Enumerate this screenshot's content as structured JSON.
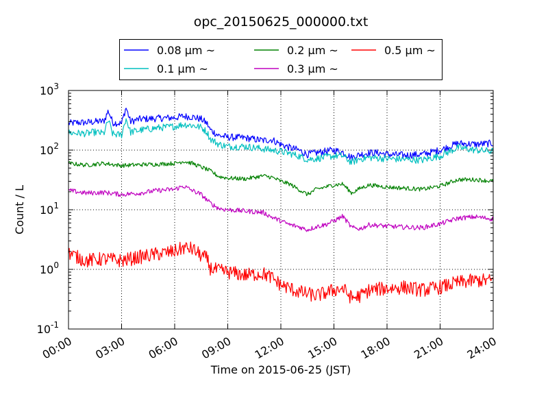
{
  "chart_data": {
    "type": "line",
    "title": "opc_20150625_000000.txt",
    "xlabel": "Time on 2015-06-25 (JST)",
    "ylabel": "Count / L",
    "x_unit": "time of day (JST)",
    "xlim": [
      "00:00",
      "24:00"
    ],
    "ylim": [
      0.1,
      1000
    ],
    "yscale": "log",
    "grid": true,
    "legend_position": "top-center",
    "x_ticks": [
      "00:00",
      "03:00",
      "06:00",
      "09:00",
      "12:00",
      "15:00",
      "18:00",
      "21:00",
      "24:00"
    ],
    "y_ticks": [
      {
        "value": 0.1,
        "base": "10",
        "exp": "-1"
      },
      {
        "value": 1,
        "base": "10",
        "exp": "0"
      },
      {
        "value": 10,
        "base": "10",
        "exp": "1"
      },
      {
        "value": 100,
        "base": "10",
        "exp": "2"
      },
      {
        "value": 1000,
        "base": "10",
        "exp": "3"
      }
    ],
    "series": [
      {
        "name": "0.08 μm ~",
        "color": "#0000ff",
        "noise": 0.06,
        "points": [
          [
            "00:00",
            280
          ],
          [
            "00:30",
            290
          ],
          [
            "01:00",
            290
          ],
          [
            "01:30",
            300
          ],
          [
            "02:00",
            305
          ],
          [
            "02:15",
            460
          ],
          [
            "02:30",
            290
          ],
          [
            "03:00",
            280
          ],
          [
            "03:15",
            520
          ],
          [
            "03:30",
            300
          ],
          [
            "04:00",
            330
          ],
          [
            "05:00",
            340
          ],
          [
            "06:00",
            350
          ],
          [
            "06:30",
            370
          ],
          [
            "07:00",
            360
          ],
          [
            "07:30",
            330
          ],
          [
            "07:50",
            280
          ],
          [
            "08:00",
            220
          ],
          [
            "08:30",
            175
          ],
          [
            "09:00",
            165
          ],
          [
            "10:00",
            160
          ],
          [
            "11:00",
            145
          ],
          [
            "11:30",
            150
          ],
          [
            "12:00",
            125
          ],
          [
            "12:30",
            110
          ],
          [
            "13:00",
            100
          ],
          [
            "13:30",
            85
          ],
          [
            "14:00",
            90
          ],
          [
            "14:30",
            95
          ],
          [
            "15:00",
            100
          ],
          [
            "15:30",
            92
          ],
          [
            "16:00",
            75
          ],
          [
            "16:30",
            85
          ],
          [
            "17:00",
            90
          ],
          [
            "17:30",
            90
          ],
          [
            "18:00",
            85
          ],
          [
            "19:00",
            82
          ],
          [
            "20:00",
            85
          ],
          [
            "21:00",
            100
          ],
          [
            "22:00",
            130
          ],
          [
            "23:00",
            125
          ],
          [
            "24:00",
            130
          ]
        ]
      },
      {
        "name": "0.1 μm ~",
        "color": "#00bfbf",
        "noise": 0.06,
        "points": [
          [
            "00:00",
            195
          ],
          [
            "01:00",
            190
          ],
          [
            "01:30",
            200
          ],
          [
            "02:00",
            190
          ],
          [
            "02:15",
            320
          ],
          [
            "02:30",
            185
          ],
          [
            "03:00",
            180
          ],
          [
            "03:15",
            340
          ],
          [
            "03:30",
            200
          ],
          [
            "04:00",
            215
          ],
          [
            "05:00",
            235
          ],
          [
            "06:00",
            250
          ],
          [
            "06:30",
            270
          ],
          [
            "07:00",
            260
          ],
          [
            "07:30",
            240
          ],
          [
            "07:50",
            200
          ],
          [
            "08:00",
            155
          ],
          [
            "08:30",
            125
          ],
          [
            "09:00",
            115
          ],
          [
            "10:00",
            115
          ],
          [
            "11:00",
            105
          ],
          [
            "12:00",
            95
          ],
          [
            "12:30",
            88
          ],
          [
            "13:00",
            80
          ],
          [
            "13:30",
            70
          ],
          [
            "14:00",
            72
          ],
          [
            "15:00",
            80
          ],
          [
            "15:30",
            80
          ],
          [
            "16:00",
            62
          ],
          [
            "16:30",
            72
          ],
          [
            "17:00",
            75
          ],
          [
            "18:00",
            72
          ],
          [
            "19:00",
            70
          ],
          [
            "20:00",
            68
          ],
          [
            "21:00",
            80
          ],
          [
            "22:00",
            110
          ],
          [
            "23:00",
            100
          ],
          [
            "24:00",
            95
          ]
        ]
      },
      {
        "name": "0.2 μm ~",
        "color": "#008000",
        "noise": 0.035,
        "points": [
          [
            "00:00",
            60
          ],
          [
            "01:00",
            56
          ],
          [
            "02:00",
            60
          ],
          [
            "03:00",
            55
          ],
          [
            "04:00",
            57
          ],
          [
            "05:00",
            58
          ],
          [
            "06:00",
            60
          ],
          [
            "06:30",
            65
          ],
          [
            "07:00",
            60
          ],
          [
            "07:30",
            52
          ],
          [
            "08:00",
            45
          ],
          [
            "08:30",
            36
          ],
          [
            "09:00",
            34
          ],
          [
            "10:00",
            33
          ],
          [
            "11:00",
            37
          ],
          [
            "11:30",
            35
          ],
          [
            "12:00",
            30
          ],
          [
            "12:30",
            27
          ],
          [
            "13:00",
            22
          ],
          [
            "13:30",
            18
          ],
          [
            "14:00",
            22
          ],
          [
            "14:30",
            24
          ],
          [
            "15:00",
            26
          ],
          [
            "15:30",
            27
          ],
          [
            "16:00",
            19
          ],
          [
            "16:30",
            23
          ],
          [
            "17:00",
            26
          ],
          [
            "18:00",
            24
          ],
          [
            "19:00",
            23
          ],
          [
            "20:00",
            22
          ],
          [
            "21:00",
            25
          ],
          [
            "22:00",
            32
          ],
          [
            "23:00",
            32
          ],
          [
            "24:00",
            30
          ]
        ]
      },
      {
        "name": "0.3 μm ~",
        "color": "#bf00bf",
        "noise": 0.04,
        "points": [
          [
            "00:00",
            21
          ],
          [
            "01:00",
            19
          ],
          [
            "02:00",
            19.5
          ],
          [
            "03:00",
            18
          ],
          [
            "04:00",
            19
          ],
          [
            "05:00",
            21
          ],
          [
            "06:00",
            22
          ],
          [
            "06:30",
            25
          ],
          [
            "07:00",
            21
          ],
          [
            "07:30",
            18
          ],
          [
            "08:00",
            13
          ],
          [
            "08:30",
            10.5
          ],
          [
            "09:00",
            10
          ],
          [
            "10:00",
            9.5
          ],
          [
            "11:00",
            9
          ],
          [
            "11:30",
            7.5
          ],
          [
            "12:00",
            6.5
          ],
          [
            "12:30",
            5.6
          ],
          [
            "13:00",
            5.2
          ],
          [
            "13:30",
            4.6
          ],
          [
            "14:00",
            5.2
          ],
          [
            "14:30",
            5.6
          ],
          [
            "15:00",
            6.5
          ],
          [
            "15:30",
            7.8
          ],
          [
            "16:00",
            5
          ],
          [
            "16:30",
            4.8
          ],
          [
            "17:00",
            5.6
          ],
          [
            "18:00",
            5.3
          ],
          [
            "19:00",
            5.1
          ],
          [
            "20:00",
            5
          ],
          [
            "21:00",
            5.8
          ],
          [
            "22:00",
            7.2
          ],
          [
            "23:00",
            7.6
          ],
          [
            "24:00",
            7
          ]
        ]
      },
      {
        "name": "0.5 μm ~",
        "color": "#ff0000",
        "noise": 0.12,
        "points": [
          [
            "00:00",
            1.9
          ],
          [
            "00:30",
            1.6
          ],
          [
            "01:00",
            1.4
          ],
          [
            "02:00",
            1.5
          ],
          [
            "03:00",
            1.4
          ],
          [
            "04:00",
            1.6
          ],
          [
            "05:00",
            1.8
          ],
          [
            "06:00",
            2
          ],
          [
            "06:30",
            2.3
          ],
          [
            "07:00",
            2.2
          ],
          [
            "07:30",
            1.7
          ],
          [
            "07:50",
            1.5
          ],
          [
            "08:00",
            1.05
          ],
          [
            "08:30",
            0.95
          ],
          [
            "09:00",
            0.9
          ],
          [
            "10:00",
            0.8
          ],
          [
            "11:00",
            0.85
          ],
          [
            "11:30",
            0.72
          ],
          [
            "12:00",
            0.55
          ],
          [
            "12:30",
            0.48
          ],
          [
            "13:00",
            0.42
          ],
          [
            "14:00",
            0.36
          ],
          [
            "14:30",
            0.4
          ],
          [
            "15:00",
            0.45
          ],
          [
            "15:30",
            0.48
          ],
          [
            "16:00",
            0.33
          ],
          [
            "16:30",
            0.36
          ],
          [
            "17:00",
            0.45
          ],
          [
            "18:00",
            0.48
          ],
          [
            "19:00",
            0.5
          ],
          [
            "20:00",
            0.45
          ],
          [
            "21:00",
            0.5
          ],
          [
            "22:00",
            0.6
          ],
          [
            "23:00",
            0.65
          ],
          [
            "24:00",
            0.65
          ]
        ]
      }
    ]
  }
}
